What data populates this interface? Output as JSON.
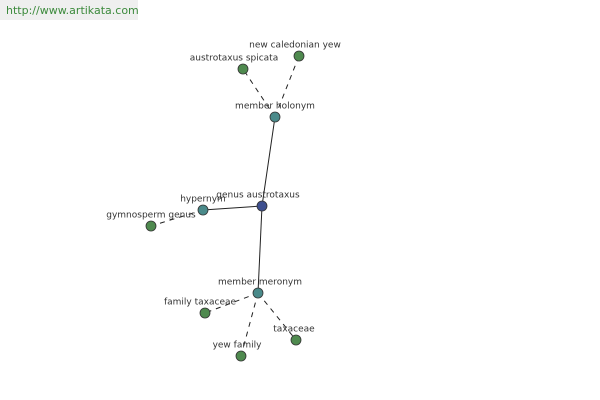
{
  "header": {
    "url": "http://www.artikata.com"
  },
  "nodes": [
    {
      "label": "genus austrotaxus"
    },
    {
      "label": "member holonym"
    },
    {
      "label": "austrotaxus spicata"
    },
    {
      "label": "new caledonian yew"
    },
    {
      "label": "hypernym"
    },
    {
      "label": "gymnosperm genus"
    },
    {
      "label": "member meronym"
    },
    {
      "label": "family taxaceae"
    },
    {
      "label": "yew family"
    },
    {
      "label": "taxaceae"
    }
  ]
}
